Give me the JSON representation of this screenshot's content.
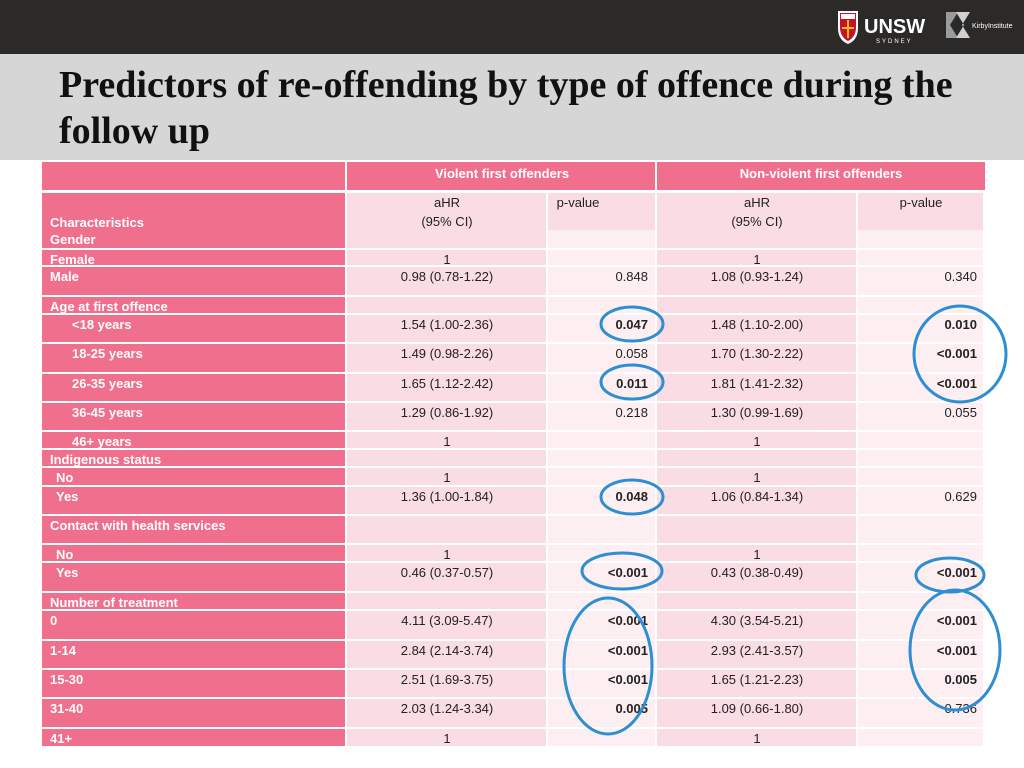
{
  "title": "Predictors of re-offending by type of offence during the follow up",
  "logos": {
    "unsw": "UNSW",
    "unsw_sub": "SYDNEY",
    "kirby": "KirbyInstitute"
  },
  "colors": {
    "header_pink": "#ef6f8d",
    "row_light": "#f9dce4",
    "row_lighter": "#fdeef2",
    "circle": "#2d8fd2",
    "topbar": "#2b2a29",
    "title_band": "#d7d6d6"
  },
  "table": {
    "groups": [
      "Violent first offenders",
      "Non-violent first offenders"
    ],
    "subheaders": {
      "ahr": "aHR",
      "ci": "(95% CI)",
      "pvalue": "p-value",
      "characteristics": "Characteristics"
    },
    "rows": [
      {
        "label": "Gender",
        "indent": 0,
        "cells": [
          "",
          "",
          "",
          ""
        ]
      },
      {
        "label": "Female",
        "indent": 0,
        "cells": [
          "1",
          "",
          "1",
          ""
        ]
      },
      {
        "label": "Male",
        "indent": 0,
        "cells": [
          "0.98 (0.78-1.22)",
          "0.848",
          "1.08 (0.93-1.24)",
          "0.340"
        ]
      },
      {
        "label": "Age at first offence",
        "indent": 0,
        "cells": [
          "",
          "",
          "",
          ""
        ]
      },
      {
        "label": "<18 years",
        "indent": 2,
        "cells": [
          "1.54 (1.00-2.36)",
          "0.047",
          "1.48 (1.10-2.00)",
          "0.010"
        ]
      },
      {
        "label": "18-25 years",
        "indent": 2,
        "cells": [
          "1.49 (0.98-2.26)",
          "0.058",
          "1.70 (1.30-2.22)",
          "<0.001"
        ]
      },
      {
        "label": "26-35 years",
        "indent": 2,
        "cells": [
          "1.65 (1.12-2.42)",
          "0.011",
          "1.81 (1.41-2.32)",
          "<0.001"
        ]
      },
      {
        "label": "36-45 years",
        "indent": 2,
        "cells": [
          "1.29 (0.86-1.92)",
          "0.218",
          "1.30 (0.99-1.69)",
          "0.055"
        ]
      },
      {
        "label": "46+ years",
        "indent": 2,
        "cells": [
          "1",
          "",
          "1",
          ""
        ]
      },
      {
        "label": "Indigenous status",
        "indent": 0,
        "cells": [
          "",
          "",
          "",
          ""
        ]
      },
      {
        "label": "No",
        "indent": 1,
        "cells": [
          "1",
          "",
          "1",
          ""
        ]
      },
      {
        "label": "Yes",
        "indent": 1,
        "cells": [
          "1.36 (1.00-1.84)",
          "0.048",
          "1.06 (0.84-1.34)",
          "0.629"
        ]
      },
      {
        "label": "Contact with health services",
        "indent": 0,
        "cells": [
          "",
          "",
          "",
          ""
        ]
      },
      {
        "label": "No",
        "indent": 1,
        "cells": [
          "1",
          "",
          "1",
          ""
        ]
      },
      {
        "label": "Yes",
        "indent": 1,
        "cells": [
          "0.46 (0.37-0.57)",
          "<0.001",
          "0.43 (0.38-0.49)",
          "<0.001"
        ]
      },
      {
        "label": "Number of treatment",
        "indent": 0,
        "cells": [
          "",
          "",
          "",
          ""
        ]
      },
      {
        "label": "0",
        "indent": 0,
        "cells": [
          "4.11 (3.09-5.47)",
          "<0.001",
          "4.30 (3.54-5.21)",
          "<0.001"
        ]
      },
      {
        "label": "1-14",
        "indent": 0,
        "cells": [
          "2.84 (2.14-3.74)",
          "<0.001",
          "2.93 (2.41-3.57)",
          "<0.001"
        ]
      },
      {
        "label": "15-30",
        "indent": 0,
        "cells": [
          "2.51 (1.69-3.75)",
          "<0.001",
          "1.65 (1.21-2.23)",
          "0.005"
        ]
      },
      {
        "label": "31-40",
        "indent": 0,
        "cells": [
          "2.03 (1.24-3.34)",
          "0.005",
          "1.09 (0.66-1.80)",
          "0.736"
        ]
      },
      {
        "label": "41+",
        "indent": 0,
        "cells": [
          "1",
          "",
          "1",
          ""
        ]
      }
    ],
    "bold_pvalues": [
      [
        4,
        1
      ],
      [
        6,
        1
      ],
      [
        11,
        1
      ],
      [
        14,
        1
      ],
      [
        16,
        1
      ],
      [
        17,
        1
      ],
      [
        18,
        1
      ],
      [
        19,
        1
      ],
      [
        4,
        3
      ],
      [
        5,
        3
      ],
      [
        6,
        3
      ],
      [
        14,
        3
      ],
      [
        16,
        3
      ],
      [
        17,
        3
      ],
      [
        18,
        3
      ]
    ]
  }
}
